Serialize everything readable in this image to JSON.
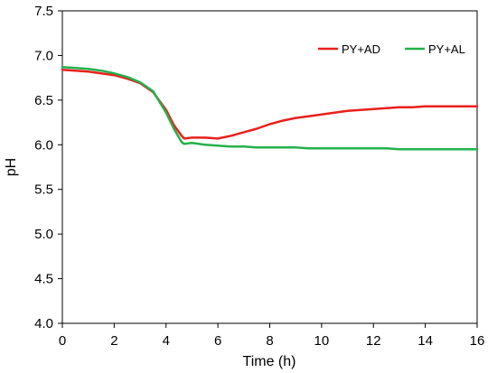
{
  "chart_data": {
    "type": "line",
    "xlabel": "Time (h)",
    "ylabel": "pH",
    "xlim": [
      0,
      16
    ],
    "ylim": [
      4.0,
      7.5
    ],
    "xticks": [
      0,
      2,
      4,
      6,
      8,
      10,
      12,
      14,
      16
    ],
    "yticks": [
      "4.0",
      "4.5",
      "5.0",
      "5.5",
      "6.0",
      "6.5",
      "7.0",
      "7.5"
    ],
    "grid": false,
    "legend_position": "top-right",
    "series": [
      {
        "name": "PY+AD",
        "color": "#e8201c",
        "x": [
          0,
          0.5,
          1,
          1.5,
          2,
          2.5,
          3,
          3.5,
          4,
          4.3,
          4.6,
          4.7,
          5,
          5.5,
          6,
          6.5,
          7,
          7.5,
          8,
          8.5,
          9,
          9.5,
          10,
          10.5,
          11,
          11.5,
          12,
          12.5,
          13,
          13.5,
          14,
          14.5,
          15,
          15.5,
          16
        ],
        "y": [
          6.84,
          6.83,
          6.82,
          6.8,
          6.78,
          6.74,
          6.69,
          6.59,
          6.39,
          6.22,
          6.1,
          6.07,
          6.08,
          6.08,
          6.07,
          6.1,
          6.14,
          6.18,
          6.23,
          6.27,
          6.3,
          6.32,
          6.34,
          6.36,
          6.38,
          6.39,
          6.4,
          6.41,
          6.42,
          6.42,
          6.43,
          6.43,
          6.43,
          6.43,
          6.43
        ]
      },
      {
        "name": "PY+AL",
        "color": "#22b14c",
        "x": [
          0,
          0.5,
          1,
          1.5,
          2,
          2.5,
          3,
          3.5,
          4,
          4.3,
          4.6,
          4.7,
          5,
          5.5,
          6,
          6.5,
          7,
          7.5,
          8,
          8.5,
          9,
          9.5,
          10,
          10.5,
          11,
          11.5,
          12,
          12.5,
          13,
          13.5,
          14,
          14.5,
          15,
          15.5,
          16
        ],
        "y": [
          6.87,
          6.86,
          6.85,
          6.83,
          6.8,
          6.76,
          6.7,
          6.6,
          6.36,
          6.18,
          6.03,
          6.01,
          6.02,
          6.0,
          5.99,
          5.98,
          5.98,
          5.97,
          5.97,
          5.97,
          5.97,
          5.96,
          5.96,
          5.96,
          5.96,
          5.96,
          5.96,
          5.96,
          5.95,
          5.95,
          5.95,
          5.95,
          5.95,
          5.95,
          5.95
        ]
      }
    ]
  }
}
